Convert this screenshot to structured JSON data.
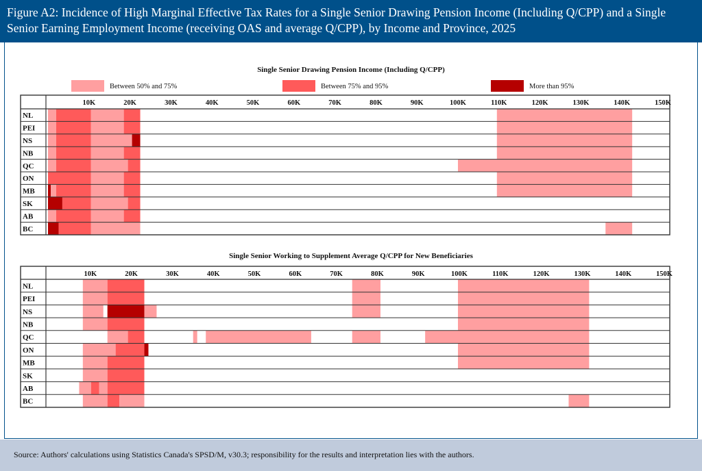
{
  "figure": {
    "title": "Figure A2: Incidence of High Marginal Effective Tax Rates for a Single Senior Drawing Pension Income (Including Q/CPP) and a Single Senior Earning Employment Income (receiving OAS and average Q/CPP), by Income and Province, 2025",
    "source": "Source: Authors' calculations using Statistics Canada's SPSD/M, v30.3; responsibility for the results and interpretation lies with the authors."
  },
  "colors": {
    "header": "#00508a",
    "footer": "#c0cbdc",
    "L": "#ff9fa0",
    "M": "#ff5a5a",
    "D": "#b50000"
  },
  "legend": [
    {
      "key": "L",
      "label": "Between 50% and 75%"
    },
    {
      "key": "M",
      "label": "Between 75% and 95%"
    },
    {
      "key": "D",
      "label": "More than 95%"
    }
  ],
  "chart_data": [
    {
      "type": "heatmap",
      "title": "Single Senior Drawing Pension Income (Including Q/CPP)",
      "x_unit": "K",
      "xlim": [
        0,
        152
      ],
      "ticks": [
        "10K",
        "20K",
        "30K",
        "40K",
        "50K",
        "60K",
        "70K",
        "80K",
        "90K",
        "100K",
        "110K",
        "120K",
        "130K",
        "140K",
        "150K"
      ],
      "tick_values": [
        10,
        20,
        30,
        40,
        50,
        60,
        70,
        80,
        90,
        100,
        110,
        120,
        130,
        140,
        150
      ],
      "rows": [
        {
          "label": "NL",
          "segments": [
            [
              0,
              2,
              "L"
            ],
            [
              2,
              10.5,
              "M"
            ],
            [
              10.5,
              18.5,
              "L"
            ],
            [
              18.5,
              22.5,
              "M"
            ],
            [
              109.5,
              142.5,
              "L"
            ]
          ]
        },
        {
          "label": "PEI",
          "segments": [
            [
              0,
              2,
              "L"
            ],
            [
              2,
              10.5,
              "M"
            ],
            [
              10.5,
              18.5,
              "L"
            ],
            [
              18.5,
              22.5,
              "M"
            ],
            [
              109.5,
              142.5,
              "L"
            ]
          ]
        },
        {
          "label": "NS",
          "segments": [
            [
              0,
              2,
              "L"
            ],
            [
              2,
              10.5,
              "M"
            ],
            [
              10.5,
              20.5,
              "L"
            ],
            [
              20.5,
              22.5,
              "D"
            ],
            [
              109.5,
              142.5,
              "L"
            ]
          ]
        },
        {
          "label": "NB",
          "segments": [
            [
              0,
              2,
              "L"
            ],
            [
              2,
              10.5,
              "M"
            ],
            [
              10.5,
              18.5,
              "L"
            ],
            [
              18.5,
              22.5,
              "M"
            ],
            [
              109.5,
              142.5,
              "L"
            ]
          ]
        },
        {
          "label": "QC",
          "segments": [
            [
              0,
              2,
              "L"
            ],
            [
              2,
              10.5,
              "M"
            ],
            [
              10.5,
              19.5,
              "L"
            ],
            [
              19.5,
              22.5,
              "M"
            ],
            [
              100,
              142.5,
              "L"
            ]
          ]
        },
        {
          "label": "ON",
          "segments": [
            [
              0,
              10.5,
              "M"
            ],
            [
              10.5,
              18.5,
              "L"
            ],
            [
              18.5,
              22.5,
              "M"
            ],
            [
              109.5,
              142.5,
              "L"
            ]
          ]
        },
        {
          "label": "MB",
          "segments": [
            [
              0,
              0.7,
              "D"
            ],
            [
              0.7,
              2,
              "L"
            ],
            [
              2,
              10.5,
              "M"
            ],
            [
              10.5,
              18.5,
              "L"
            ],
            [
              18.5,
              22.5,
              "M"
            ],
            [
              109.5,
              142.5,
              "L"
            ]
          ]
        },
        {
          "label": "SK",
          "segments": [
            [
              0,
              3.5,
              "D"
            ],
            [
              3.5,
              10.5,
              "M"
            ],
            [
              10.5,
              19.5,
              "L"
            ],
            [
              19.5,
              22.5,
              "M"
            ]
          ]
        },
        {
          "label": "AB",
          "segments": [
            [
              0,
              2,
              "L"
            ],
            [
              2,
              10.5,
              "M"
            ],
            [
              10.5,
              18.5,
              "L"
            ],
            [
              18.5,
              22.5,
              "M"
            ]
          ]
        },
        {
          "label": "BC",
          "segments": [
            [
              0,
              2.6,
              "D"
            ],
            [
              2.6,
              10.5,
              "M"
            ],
            [
              10.5,
              22.5,
              "L"
            ],
            [
              136,
              142.5,
              "L"
            ]
          ]
        }
      ]
    },
    {
      "type": "heatmap",
      "title": "Single Senior Working to Supplement Average Q/CPP for New Beneficiaries",
      "x_unit": "K",
      "xlim": [
        0,
        152
      ],
      "ticks": [
        "10K",
        "20K",
        "30K",
        "40K",
        "50K",
        "60K",
        "70K",
        "80K",
        "90K",
        "100K",
        "110K",
        "120K",
        "130K",
        "140K",
        "150K"
      ],
      "tick_values": [
        10,
        20,
        30,
        40,
        50,
        60,
        70,
        80,
        90,
        100,
        110,
        120,
        130,
        140,
        150
      ],
      "rows": [
        {
          "label": "NL",
          "segments": [
            [
              8.5,
              14.5,
              "L"
            ],
            [
              14.5,
              23.5,
              "M"
            ],
            [
              74.2,
              81.1,
              "L"
            ],
            [
              100,
              132,
              "L"
            ]
          ]
        },
        {
          "label": "PEI",
          "segments": [
            [
              8.5,
              14.5,
              "L"
            ],
            [
              14.5,
              23.5,
              "M"
            ],
            [
              74.2,
              81.1,
              "L"
            ],
            [
              100,
              132,
              "L"
            ]
          ]
        },
        {
          "label": "NS",
          "segments": [
            [
              8.5,
              13.5,
              "L"
            ],
            [
              14.5,
              23.5,
              "D"
            ],
            [
              23.5,
              26.5,
              "L"
            ],
            [
              74.2,
              81.1,
              "L"
            ],
            [
              100,
              132,
              "L"
            ]
          ]
        },
        {
          "label": "NB",
          "segments": [
            [
              8.5,
              14.5,
              "L"
            ],
            [
              14.5,
              23.5,
              "M"
            ],
            [
              100,
              132,
              "L"
            ]
          ]
        },
        {
          "label": "QC",
          "segments": [
            [
              14.5,
              19.5,
              "L"
            ],
            [
              19.5,
              23.5,
              "M"
            ],
            [
              35.4,
              36.4,
              "L"
            ],
            [
              38.5,
              64.2,
              "L"
            ],
            [
              74.2,
              81.1,
              "L"
            ],
            [
              92,
              132,
              "L"
            ]
          ]
        },
        {
          "label": "ON",
          "segments": [
            [
              8.5,
              16.5,
              "L"
            ],
            [
              16.5,
              23.5,
              "M"
            ],
            [
              23.5,
              24.5,
              "D"
            ],
            [
              100,
              132,
              "L"
            ]
          ]
        },
        {
          "label": "MB",
          "segments": [
            [
              8.5,
              14.5,
              "L"
            ],
            [
              14.5,
              23.5,
              "M"
            ],
            [
              100,
              132,
              "L"
            ]
          ]
        },
        {
          "label": "SK",
          "segments": [
            [
              8.5,
              14.5,
              "L"
            ],
            [
              14.5,
              23.5,
              "M"
            ]
          ]
        },
        {
          "label": "AB",
          "segments": [
            [
              7.6,
              10.5,
              "L"
            ],
            [
              10.5,
              12.5,
              "M"
            ],
            [
              12.5,
              14.5,
              "L"
            ],
            [
              14.5,
              23.5,
              "M"
            ]
          ]
        },
        {
          "label": "BC",
          "segments": [
            [
              8.5,
              14.5,
              "L"
            ],
            [
              14.5,
              17.4,
              "M"
            ],
            [
              17.4,
              23.5,
              "L"
            ],
            [
              127,
              132,
              "L"
            ]
          ]
        }
      ]
    }
  ]
}
